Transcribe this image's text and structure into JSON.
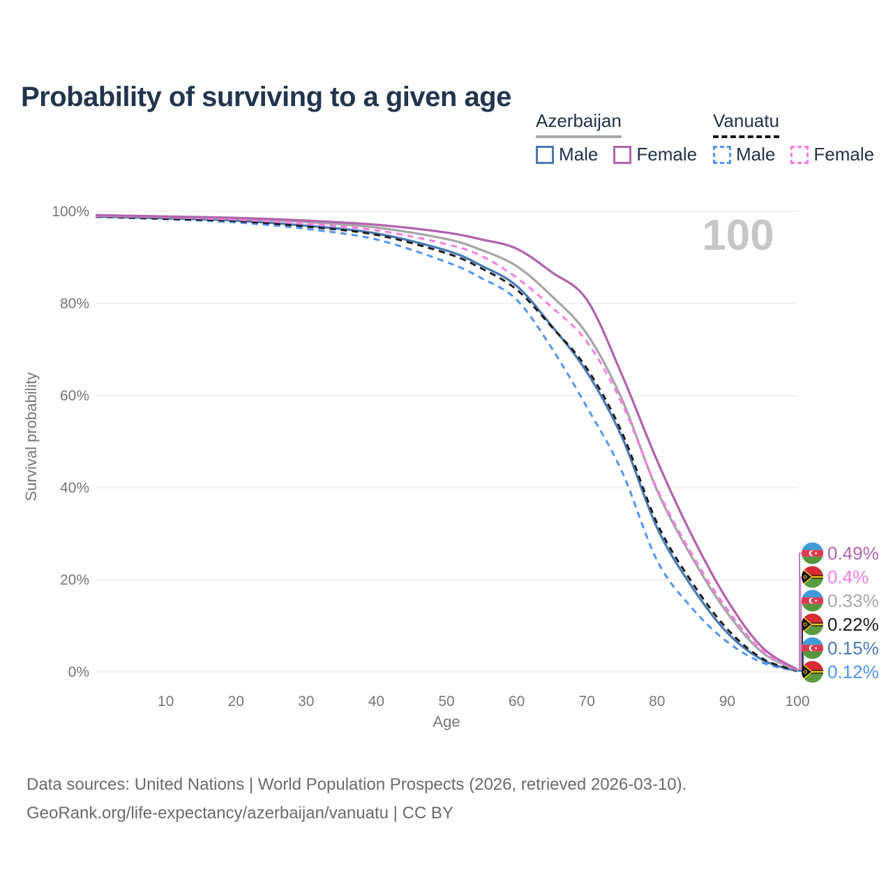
{
  "header": {
    "title": "Probability of surviving to a given age"
  },
  "legend": {
    "groups": [
      {
        "country": "Azerbaijan",
        "line_style": "solid",
        "line_color": "#a9a9a9",
        "items": [
          {
            "label": "Male",
            "swatch_color": "#4a7ab5",
            "swatch_style": "solid"
          },
          {
            "label": "Female",
            "swatch_color": "#b164ac",
            "swatch_style": "solid"
          }
        ]
      },
      {
        "country": "Vanuatu",
        "line_style": "dashed",
        "line_color": "#161616",
        "items": [
          {
            "label": "Male",
            "swatch_color": "#4f94f5",
            "swatch_style": "dashed"
          },
          {
            "label": "Female",
            "swatch_color": "#fb7ce4",
            "swatch_style": "dashed"
          }
        ]
      }
    ]
  },
  "chart_data": {
    "type": "line",
    "title": "Probability of surviving to a given age",
    "xlabel": "Age",
    "ylabel": "Survival probability",
    "xlim": [
      0,
      100
    ],
    "ylim": [
      0,
      100
    ],
    "grid": "horizontal",
    "legend_position": "top-right",
    "watermark": "100",
    "x_ticks": [
      10,
      20,
      30,
      40,
      50,
      60,
      70,
      80,
      90,
      100
    ],
    "y_tick_values": [
      0,
      20,
      40,
      60,
      80,
      100
    ],
    "y_tick_labels": [
      "0%",
      "20%",
      "40%",
      "60%",
      "80%",
      "100%"
    ],
    "ages": [
      0,
      10,
      20,
      30,
      40,
      50,
      55,
      60,
      65,
      70,
      75,
      80,
      85,
      90,
      95,
      100
    ],
    "series": [
      {
        "name": "Azerbaijan Female",
        "country": "Azerbaijan",
        "sex": "Female",
        "style": "solid",
        "color": "#b164ac",
        "flag": "azerbaijan",
        "end_label": "0.49%",
        "values": [
          99.2,
          98.9,
          98.6,
          98.0,
          97.1,
          95.4,
          93.9,
          91.9,
          86.8,
          80.8,
          64.5,
          45.9,
          29.5,
          15.6,
          5.3,
          0.49
        ]
      },
      {
        "name": "Vanuatu Female",
        "country": "Vanuatu",
        "sex": "Female",
        "style": "dashed",
        "color": "#fb7ce4",
        "flag": "vanuatu",
        "end_label": "0.4%",
        "values": [
          99.0,
          98.7,
          98.2,
          97.3,
          95.9,
          92.9,
          90.3,
          85.6,
          79.2,
          71.7,
          58.3,
          39.8,
          25.5,
          13.6,
          4.6,
          0.4
        ]
      },
      {
        "name": "Azerbaijan Overall",
        "country": "Azerbaijan",
        "sex": "Overall",
        "style": "solid",
        "color": "#a6a6a6",
        "flag": "azerbaijan",
        "end_label": "0.33%",
        "values": [
          99.1,
          98.8,
          98.4,
          97.7,
          96.5,
          94.0,
          91.6,
          88.1,
          81.6,
          73.4,
          59.2,
          39.4,
          24.8,
          12.8,
          4.2,
          0.33
        ]
      },
      {
        "name": "Vanuatu Overall",
        "country": "Vanuatu",
        "sex": "Overall",
        "style": "dashed",
        "color": "#1c1c1c",
        "flag": "vanuatu",
        "end_label": "0.22%",
        "values": [
          98.9,
          98.4,
          97.9,
          96.7,
          94.9,
          90.9,
          87.6,
          83.0,
          74.9,
          65.9,
          52.0,
          32.3,
          19.4,
          9.3,
          2.9,
          0.22
        ]
      },
      {
        "name": "Azerbaijan Male",
        "country": "Azerbaijan",
        "sex": "Male",
        "style": "solid",
        "color": "#4a7ab5",
        "flag": "azerbaijan",
        "end_label": "0.15%",
        "values": [
          98.9,
          98.5,
          98.0,
          96.9,
          95.2,
          91.5,
          88.2,
          83.8,
          75.1,
          65.1,
          51.0,
          31.3,
          18.4,
          8.5,
          2.6,
          0.15
        ]
      },
      {
        "name": "Vanuatu Male",
        "country": "Vanuatu",
        "sex": "Male",
        "style": "dashed",
        "color": "#4f94f5",
        "flag": "vanuatu",
        "end_label": "0.12%",
        "values": [
          98.8,
          98.3,
          97.6,
          96.2,
          93.9,
          89.0,
          85.5,
          80.8,
          70.3,
          57.5,
          43.5,
          24.2,
          13.8,
          6.5,
          2.0,
          0.12
        ]
      }
    ]
  },
  "colors": {
    "title_text": "#22354e",
    "axis_text": "#767676",
    "grid_line": "#eaeaea",
    "watermark": "#c6c6c6",
    "footer_text": "#6a6a6a"
  },
  "footer": {
    "line1": "Data sources: United Nations | World Population Prospects (2026, retrieved 2026-03-10).",
    "line2": "GeoRank.org/life-expectancy/azerbaijan/vanuatu | CC BY"
  }
}
